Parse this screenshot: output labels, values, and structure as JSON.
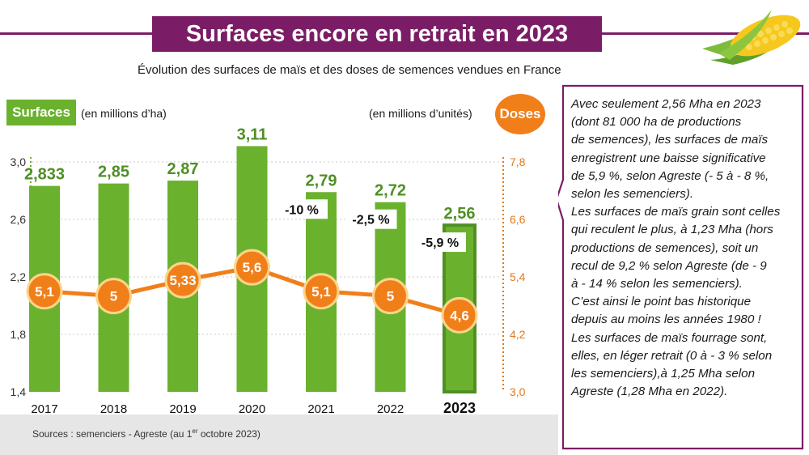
{
  "title": "Surfaces encore en retrait en 2023",
  "subtitle": "Évolution des surfaces de maïs et des doses de semences vendues en France",
  "left_badge": "Surfaces",
  "left_unit": "(en millions d’ha)",
  "right_unit": "(en millions d’unités)",
  "right_badge": "Doses",
  "sources": {
    "before": "Sources : semenciers - Agreste (au 1",
    "sup": "er",
    "after": " octobre 2023)"
  },
  "callout": {
    "lines": [
      "Avec seulement 2,56 Mha en 2023",
      "(dont 81 000 ha de productions",
      "de semences), les surfaces de maïs",
      "enregistrent une baisse significative",
      "de 5,9 %, selon Agreste (- 5 à - 8 %,",
      "selon les semenciers).",
      "Les surfaces de maïs grain sont celles",
      "qui reculent le plus, à 1,23 Mha (hors",
      "productions de semences), soit un",
      "recul de 9,2 % selon Agreste (de - 9",
      "à - 14 % selon les semenciers).",
      "C’est ainsi le point bas historique",
      "depuis au moins les années 1980 !",
      "Les surfaces de maïs fourrage sont,",
      "elles, en léger retrait (0 à - 3 % selon",
      "les semenciers),à 1,25 Mha selon",
      "Agreste (1,28 Mha en 2022)."
    ]
  },
  "colors": {
    "title_bg": "#7b1d66",
    "bar": "#6ab22e",
    "bar_highlight": "#4f8f24",
    "line": "#f07f1a",
    "right_axis": "#e07a1c"
  },
  "chart_data": {
    "type": "bar+line",
    "categories": [
      "2017",
      "2018",
      "2019",
      "2020",
      "2021",
      "2022",
      "2023"
    ],
    "series": [
      {
        "name": "Surfaces",
        "type": "bar",
        "axis": "left",
        "values": [
          2.833,
          2.85,
          2.87,
          3.11,
          2.79,
          2.72,
          2.56
        ],
        "labels": [
          "2,833",
          "2,85",
          "2,87",
          "3,11",
          "2,79",
          "2,72",
          "2,56"
        ]
      },
      {
        "name": "Doses",
        "type": "line",
        "axis": "right",
        "values": [
          5.1,
          5,
          5.33,
          5.6,
          5.1,
          5,
          4.6
        ],
        "labels": [
          "5,1",
          "5",
          "5,33",
          "5,6",
          "5,1",
          "5",
          "4,6"
        ]
      }
    ],
    "annotations": [
      {
        "category": "2021",
        "text": "-10 %"
      },
      {
        "category": "2022",
        "text": "-2,5 %"
      },
      {
        "category": "2023",
        "text": "-5,9 %"
      }
    ],
    "y_left": {
      "range": [
        1.4,
        3.0
      ],
      "ticks": [
        1.4,
        1.8,
        2.2,
        2.6,
        3.0
      ],
      "tick_labels": [
        "1,4",
        "1,8",
        "2,2",
        "2,6",
        "3,0"
      ]
    },
    "y_right": {
      "range": [
        3.0,
        7.8
      ],
      "ticks": [
        3.0,
        4.2,
        5.4,
        6.6,
        7.8
      ],
      "tick_labels": [
        "3,0",
        "4,2",
        "5,4",
        "6,6",
        "7,8"
      ]
    },
    "highlight_category": "2023",
    "grid": true
  }
}
